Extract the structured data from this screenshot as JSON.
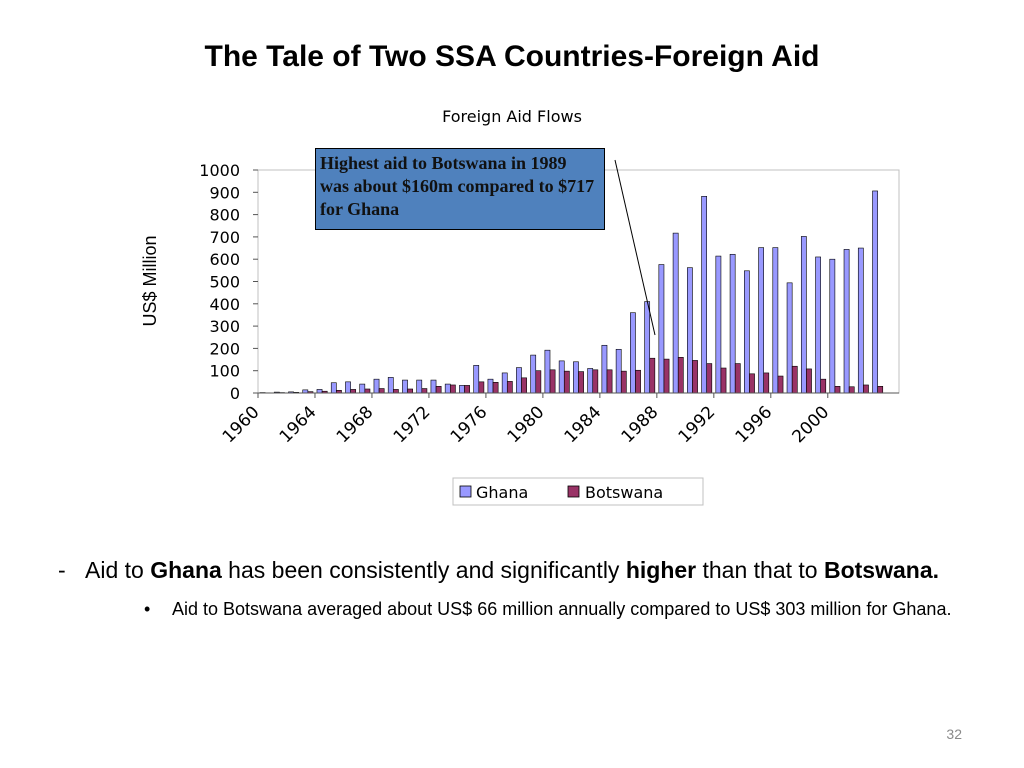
{
  "slide": {
    "title": "The Tale of Two SSA Countries-Foreign Aid",
    "page_number": "32"
  },
  "callout": {
    "text": "Highest aid to Botswana in 1989 was about $160m compared to $717 for Ghana"
  },
  "bullets": {
    "level1": {
      "dash": "-",
      "parts": [
        "Aid to ",
        "Ghana",
        " has been consistently and significantly ",
        "higher",
        " than that to ",
        "Botswana."
      ]
    },
    "level2": {
      "marker": "•",
      "text": "Aid to Botswana averaged about US$ 66 million annually compared to US$ 303 million for Ghana."
    }
  },
  "colors": {
    "ghana": "#9999ff",
    "botswana": "#993366",
    "callout_fill": "#4f81bd"
  },
  "chart_data": {
    "type": "bar",
    "title": "Foreign Aid Flows",
    "ylabel": "US$ Million",
    "xlabel": "",
    "ylim": [
      0,
      1000
    ],
    "yticks": [
      0,
      100,
      200,
      300,
      400,
      500,
      600,
      700,
      800,
      900,
      1000
    ],
    "grid": false,
    "legend_position": "bottom",
    "tick_labels": [
      "1960",
      "1964",
      "1968",
      "1972",
      "1976",
      "1980",
      "1984",
      "1988",
      "1992",
      "1996",
      "2000"
    ],
    "categories": [
      1960,
      1961,
      1962,
      1963,
      1964,
      1965,
      1966,
      1967,
      1968,
      1969,
      1970,
      1971,
      1972,
      1973,
      1974,
      1975,
      1976,
      1977,
      1978,
      1979,
      1980,
      1981,
      1982,
      1983,
      1984,
      1985,
      1986,
      1987,
      1988,
      1989,
      1990,
      1991,
      1992,
      1993,
      1994,
      1995,
      1996,
      1997,
      1998,
      1999,
      2000,
      2001,
      2002,
      2003,
      2004
    ],
    "series": [
      {
        "name": "Ghana",
        "values": [
          2,
          4,
          5,
          14,
          16,
          46,
          50,
          40,
          62,
          70,
          58,
          58,
          58,
          40,
          34,
          124,
          62,
          90,
          114,
          170,
          192,
          144,
          140,
          110,
          214,
          196,
          360,
          410,
          576,
          717,
          562,
          882,
          614,
          622,
          548,
          652,
          652,
          494,
          702,
          610,
          600,
          644,
          650,
          906,
          0
        ]
      },
      {
        "name": "Botswana",
        "values": [
          1,
          2,
          3,
          6,
          8,
          12,
          16,
          18,
          20,
          16,
          18,
          20,
          30,
          36,
          34,
          50,
          48,
          52,
          68,
          100,
          104,
          98,
          96,
          104,
          104,
          98,
          102,
          156,
          152,
          160,
          146,
          132,
          112,
          132,
          86,
          90,
          76,
          120,
          108,
          62,
          30,
          28,
          36,
          30,
          0
        ]
      }
    ]
  }
}
